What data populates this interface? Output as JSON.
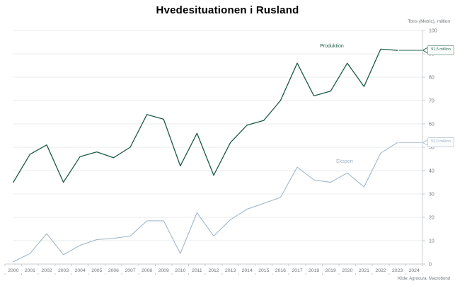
{
  "title": "Hvedesituationen i Rusland",
  "y_axis_unit": "Tons (Metric), million",
  "source": "Kilde: Agrocura, Macrobond",
  "colors": {
    "produktion": "#1b5a46",
    "eksport": "#a5b9cb",
    "grid": "#e9ebed",
    "axis": "#c8cdd2",
    "tick_text": "#6f7478"
  },
  "chart_data": {
    "type": "line",
    "title": "Hvedesituationen i Rusland",
    "ylabel": "Tons (Metric), million",
    "ylim": [
      0,
      100
    ],
    "ytick_step": 10,
    "grid": true,
    "legend_position": "inline-labels",
    "x": [
      2000,
      2001,
      2002,
      2003,
      2004,
      2005,
      2006,
      2007,
      2008,
      2009,
      2010,
      2011,
      2012,
      2013,
      2014,
      2015,
      2016,
      2017,
      2018,
      2019,
      2020,
      2021,
      2022,
      2023
    ],
    "x_tick_labels": [
      "2000",
      "2001",
      "2002",
      "2003",
      "2004",
      "2005",
      "2006",
      "2007",
      "2008",
      "2009",
      "2010",
      "2011",
      "2012",
      "2013",
      "2014",
      "2015",
      "2016",
      "2017",
      "2018",
      "2019",
      "2020",
      "2021",
      "2022",
      "2023",
      "2024"
    ],
    "series": [
      {
        "name": "Produktion",
        "color": "#1b5a46",
        "callout": "91,5 million",
        "values": [
          35,
          47,
          51,
          35,
          46,
          48,
          45.5,
          50,
          64,
          62,
          42,
          56,
          38,
          52,
          59.5,
          61.5,
          70,
          86,
          72,
          74,
          86,
          76,
          92,
          91.5
        ]
      },
      {
        "name": "Eksport",
        "color": "#a5b9cb",
        "callout": "52,0 million",
        "values": [
          1,
          4.5,
          13,
          4,
          8,
          10.5,
          11,
          12,
          18.5,
          18.5,
          4.5,
          22,
          12,
          19,
          23.5,
          26,
          28.5,
          41.5,
          36,
          35,
          39,
          33,
          47.5,
          52
        ]
      }
    ]
  }
}
